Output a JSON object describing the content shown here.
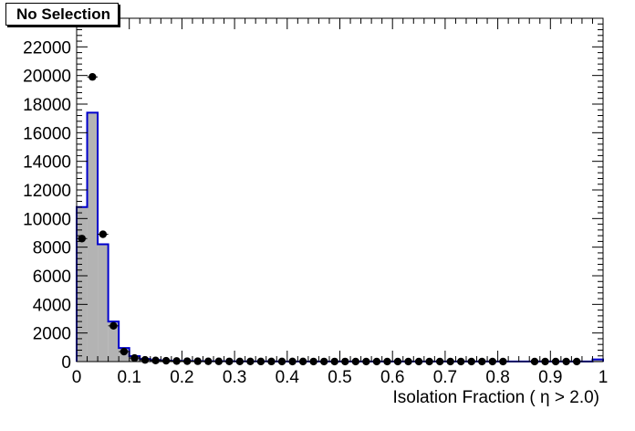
{
  "chart_data": {
    "type": "histogram",
    "title": "No Selection",
    "xlabel": "Isolation Fraction ( η > 2.0)",
    "ylabel": "",
    "xlim": [
      0,
      1
    ],
    "ylim": [
      0,
      24000
    ],
    "x_ticks": [
      "0",
      "0.1",
      "0.2",
      "0.3",
      "0.4",
      "0.5",
      "0.6",
      "0.7",
      "0.8",
      "0.9",
      "1"
    ],
    "y_ticks": [
      "0",
      "2000",
      "4000",
      "6000",
      "8000",
      "10000",
      "12000",
      "14000",
      "16000",
      "18000",
      "20000",
      "22000"
    ],
    "bin_width": 0.02,
    "series": [
      {
        "style": "filled-histogram",
        "fill": "#b3b3b3",
        "line": "#0000cc",
        "x": [
          0.0,
          0.02,
          0.04,
          0.06,
          0.08,
          0.1,
          0.12,
          0.14,
          0.16,
          0.18,
          0.2,
          0.22,
          0.24,
          0.26,
          0.28,
          0.3,
          0.32,
          0.34,
          0.36,
          0.38,
          0.4,
          0.42,
          0.44,
          0.46,
          0.48,
          0.5,
          0.52,
          0.54,
          0.56,
          0.58,
          0.6,
          0.62,
          0.64,
          0.66,
          0.68,
          0.7,
          0.72,
          0.74,
          0.76,
          0.78,
          0.8,
          0.82,
          0.84,
          0.86,
          0.88,
          0.9,
          0.92,
          0.94,
          0.96,
          0.98
        ],
        "values": [
          10800,
          17400,
          8200,
          2800,
          950,
          380,
          180,
          110,
          70,
          50,
          40,
          30,
          25,
          20,
          20,
          15,
          15,
          12,
          12,
          10,
          10,
          10,
          8,
          8,
          8,
          8,
          6,
          6,
          6,
          6,
          6,
          5,
          5,
          5,
          5,
          5,
          5,
          4,
          4,
          4,
          4,
          4,
          4,
          4,
          4,
          4,
          4,
          4,
          4,
          150
        ]
      },
      {
        "style": "markers",
        "color": "#000000",
        "x": [
          0.01,
          0.03,
          0.05,
          0.07,
          0.09,
          0.11,
          0.13,
          0.15,
          0.17,
          0.19,
          0.21,
          0.23,
          0.25,
          0.27,
          0.29,
          0.31,
          0.33,
          0.35,
          0.37,
          0.39,
          0.41,
          0.43,
          0.45,
          0.47,
          0.49,
          0.51,
          0.53,
          0.55,
          0.57,
          0.59,
          0.61,
          0.63,
          0.65,
          0.67,
          0.69,
          0.71,
          0.73,
          0.75,
          0.77,
          0.79,
          0.81,
          0.87,
          0.89,
          0.91,
          0.93,
          0.95
        ],
        "values": [
          8600,
          19900,
          8900,
          2500,
          700,
          250,
          120,
          80,
          60,
          40,
          30,
          25,
          20,
          18,
          15,
          12,
          12,
          10,
          10,
          8,
          8,
          8,
          6,
          6,
          6,
          6,
          5,
          5,
          5,
          5,
          5,
          5,
          4,
          4,
          4,
          4,
          4,
          4,
          4,
          4,
          4,
          4,
          4,
          4,
          4,
          4
        ]
      }
    ]
  }
}
